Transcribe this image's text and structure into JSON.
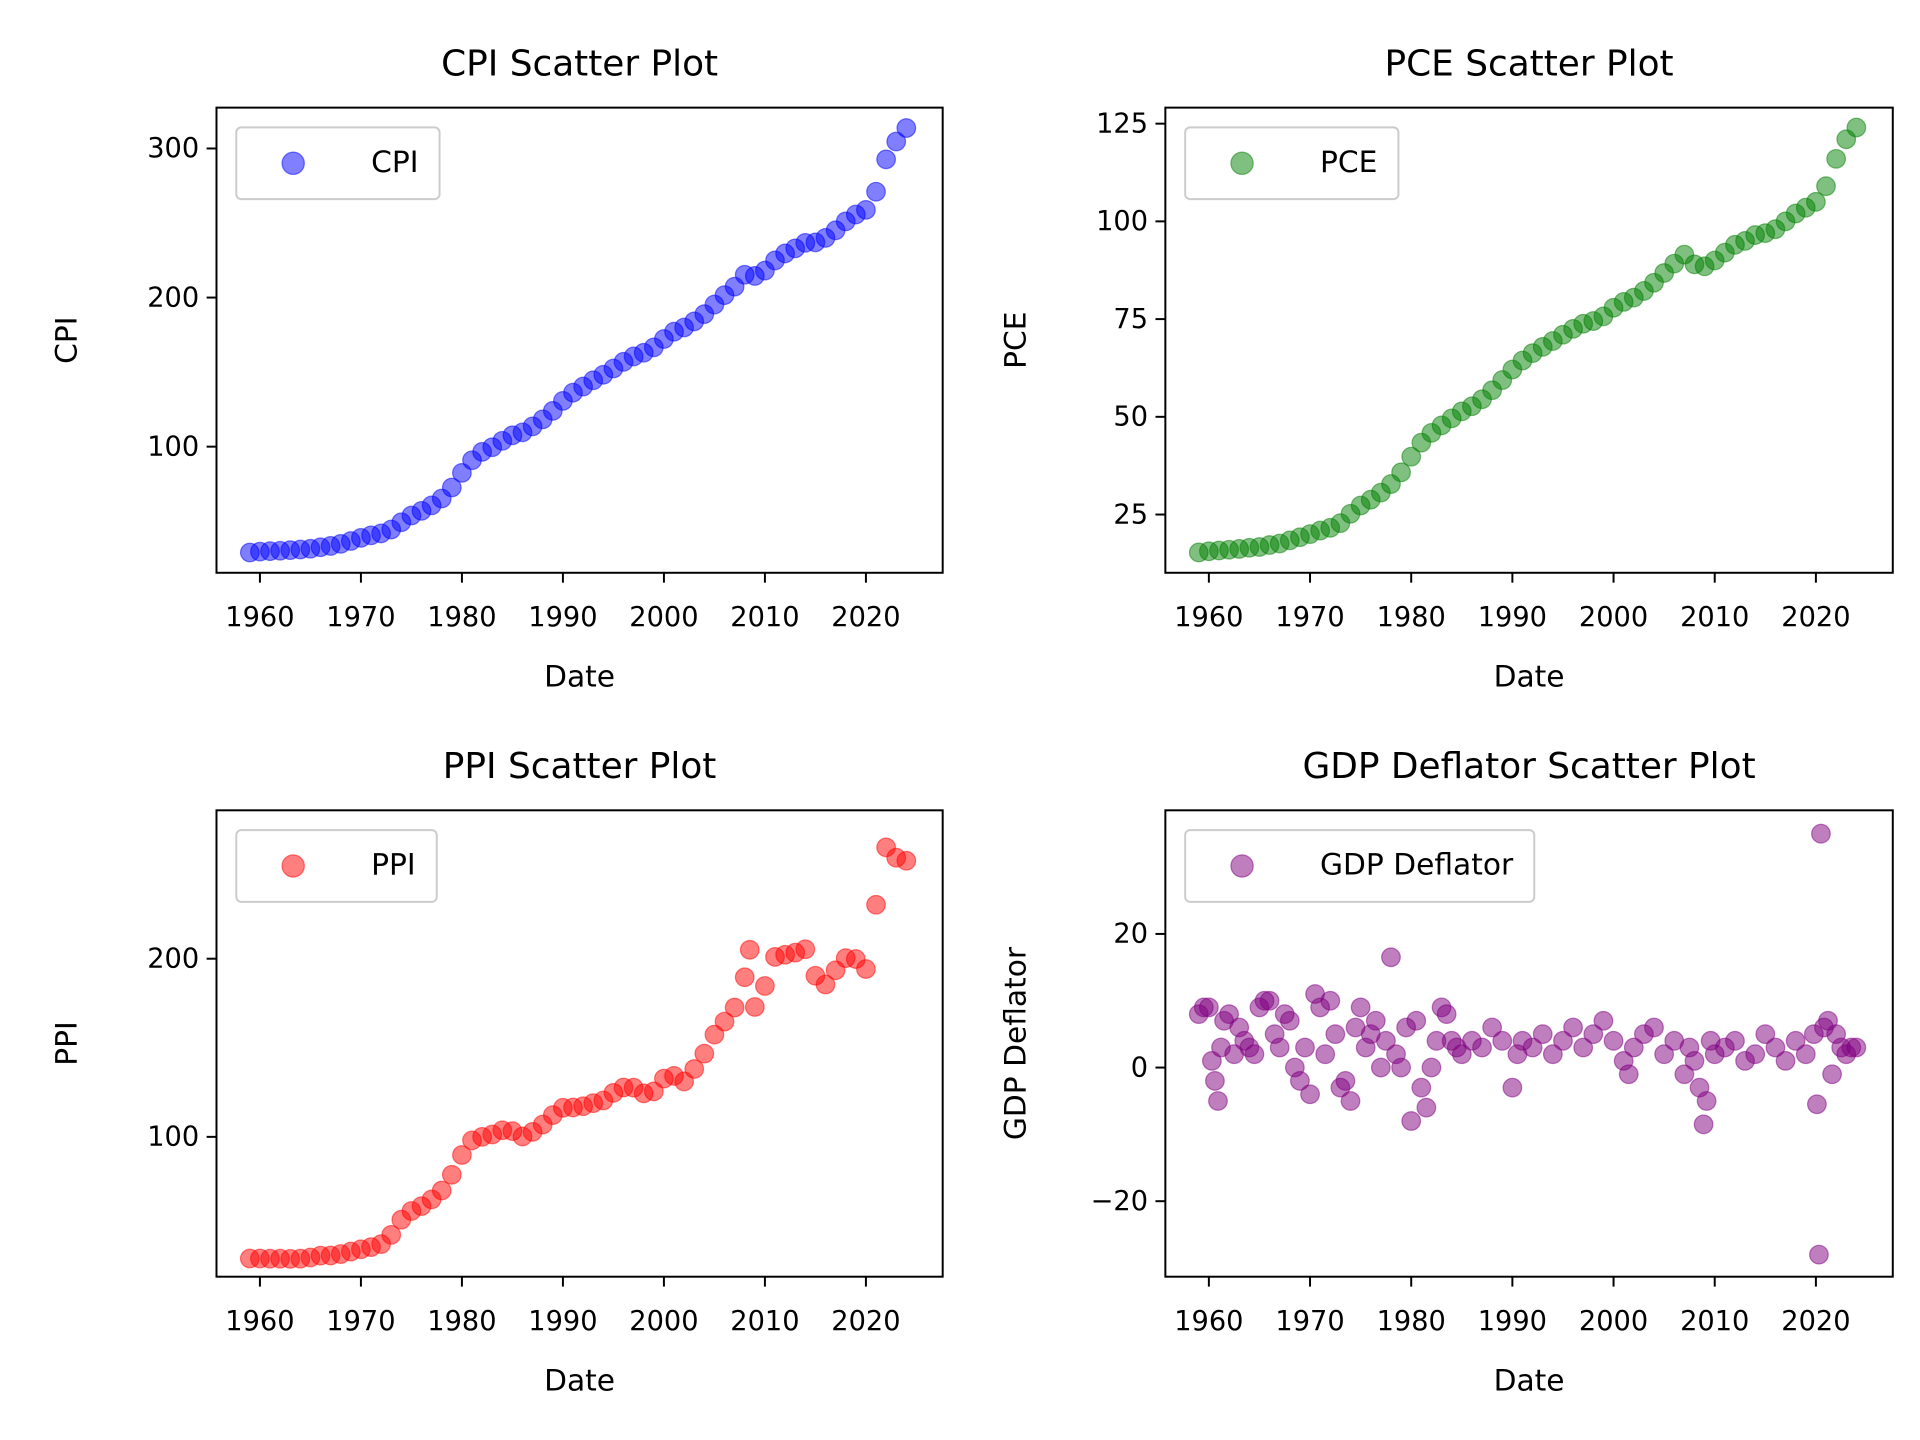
{
  "chart_data": [
    {
      "type": "scatter",
      "title": "CPI Scatter Plot",
      "xlabel": "Date",
      "ylabel": "CPI",
      "legend": "upper left",
      "xlim": [
        1955.7,
        2027.6
      ],
      "ylim": [
        15.4,
        327.4
      ],
      "xticks": [
        1960,
        1970,
        1980,
        1990,
        2000,
        2010,
        2020
      ],
      "yticks": [
        100,
        200,
        300
      ],
      "series": [
        {
          "name": "CPI",
          "color": "#0000ff",
          "x": [
            1959,
            1960,
            1961,
            1962,
            1963,
            1964,
            1965,
            1966,
            1967,
            1968,
            1969,
            1970,
            1971,
            1972,
            1973,
            1974,
            1975,
            1976,
            1977,
            1978,
            1979,
            1980,
            1981,
            1982,
            1983,
            1984,
            1985,
            1986,
            1987,
            1988,
            1989,
            1990,
            1991,
            1992,
            1993,
            1994,
            1995,
            1996,
            1997,
            1998,
            1999,
            2000,
            2001,
            2002,
            2003,
            2004,
            2005,
            2006,
            2007,
            2008,
            2009,
            2010,
            2011,
            2012,
            2013,
            2014,
            2015,
            2016,
            2017,
            2018,
            2019,
            2020,
            2021,
            2022,
            2023,
            2024
          ],
          "values": [
            29.0,
            29.6,
            29.9,
            30.2,
            30.6,
            31.0,
            31.5,
            32.5,
            33.4,
            34.8,
            36.7,
            38.8,
            40.5,
            41.8,
            44.4,
            49.3,
            53.8,
            56.9,
            60.6,
            65.2,
            72.6,
            82.4,
            90.9,
            96.5,
            99.6,
            103.9,
            107.6,
            109.6,
            113.6,
            118.3,
            124.0,
            130.7,
            136.2,
            140.3,
            144.5,
            148.2,
            152.4,
            156.9,
            160.5,
            163.0,
            166.6,
            172.2,
            177.1,
            179.9,
            184.0,
            188.9,
            195.3,
            201.6,
            207.3,
            215.3,
            214.5,
            218.1,
            224.9,
            229.6,
            233.0,
            236.7,
            237.0,
            240.0,
            245.1,
            251.1,
            255.7,
            258.8,
            271.0,
            292.7,
            304.7,
            313.7
          ]
        }
      ]
    },
    {
      "type": "scatter",
      "title": "PCE Scatter Plot",
      "xlabel": "Date",
      "ylabel": "PCE",
      "legend": "upper left",
      "xlim": [
        1955.7,
        2027.6
      ],
      "ylim": [
        10.1,
        129.1
      ],
      "xticks": [
        1960,
        1970,
        1980,
        1990,
        2000,
        2010,
        2020
      ],
      "yticks": [
        25,
        50,
        75,
        100,
        125
      ],
      "series": [
        {
          "name": "PCE",
          "color": "#008000",
          "x": [
            1959,
            1960,
            1961,
            1962,
            1963,
            1964,
            1965,
            1966,
            1967,
            1968,
            1969,
            1970,
            1971,
            1972,
            1973,
            1974,
            1975,
            1976,
            1977,
            1978,
            1979,
            1980,
            1981,
            1982,
            1983,
            1984,
            1985,
            1986,
            1987,
            1988,
            1989,
            1990,
            1991,
            1992,
            1993,
            1994,
            1995,
            1996,
            1997,
            1998,
            1999,
            2000,
            2001,
            2002,
            2003,
            2004,
            2005,
            2006,
            2007,
            2008,
            2009,
            2010,
            2011,
            2012,
            2013,
            2014,
            2015,
            2016,
            2017,
            2018,
            2019,
            2020,
            2021,
            2022,
            2023,
            2024
          ],
          "values": [
            15.3,
            15.6,
            15.8,
            16.0,
            16.2,
            16.5,
            16.7,
            17.2,
            17.6,
            18.4,
            19.2,
            20.0,
            20.9,
            21.6,
            22.8,
            25.2,
            27.3,
            28.8,
            30.6,
            32.8,
            35.8,
            39.8,
            43.4,
            45.9,
            47.8,
            49.6,
            51.4,
            52.7,
            54.5,
            56.8,
            59.4,
            62.1,
            64.4,
            66.3,
            67.9,
            69.4,
            71.0,
            72.5,
            73.8,
            74.5,
            75.7,
            77.9,
            79.4,
            80.5,
            82.2,
            84.3,
            86.8,
            89.2,
            91.5,
            89.0,
            88.5,
            90.0,
            92.0,
            94.0,
            95.0,
            96.5,
            97.0,
            98.0,
            100.0,
            102.0,
            103.5,
            105.0,
            109.0,
            116.0,
            121.0,
            124.0
          ]
        }
      ]
    },
    {
      "type": "scatter",
      "title": "PPI Scatter Plot",
      "xlabel": "Date",
      "ylabel": "PPI",
      "legend": "upper left",
      "xlim": [
        1955.7,
        2027.6
      ],
      "ylim": [
        21.5,
        283.3
      ],
      "xticks": [
        1960,
        1970,
        1980,
        1990,
        2000,
        2010,
        2020
      ],
      "yticks": [
        100,
        200
      ],
      "series": [
        {
          "name": "PPI",
          "color": "#ff0000",
          "x": [
            1959,
            1960,
            1961,
            1962,
            1963,
            1964,
            1965,
            1966,
            1967,
            1968,
            1969,
            1970,
            1971,
            1972,
            1973,
            1974,
            1975,
            1976,
            1977,
            1978,
            1979,
            1980,
            1981,
            1982,
            1983,
            1984,
            1985,
            1986,
            1987,
            1988,
            1989,
            1990,
            1991,
            1992,
            1993,
            1994,
            1995,
            1996,
            1997,
            1998,
            1999,
            2000,
            2001,
            2002,
            2003,
            2004,
            2005,
            2006,
            2007,
            2008,
            2008.5,
            2009,
            2010,
            2011,
            2012,
            2013,
            2014,
            2015,
            2016,
            2017,
            2018,
            2019,
            2020,
            2021,
            2022,
            2023,
            2024
          ],
          "values": [
            31.7,
            31.7,
            31.6,
            31.6,
            31.5,
            31.6,
            32.3,
            33.3,
            33.4,
            34.2,
            35.6,
            36.9,
            38.1,
            39.8,
            45.0,
            53.5,
            58.4,
            61.1,
            64.9,
            69.9,
            78.7,
            89.8,
            98.0,
            100.0,
            101.3,
            103.7,
            103.2,
            100.2,
            102.8,
            106.9,
            112.2,
            116.3,
            116.5,
            117.2,
            118.9,
            120.4,
            124.7,
            127.7,
            127.6,
            124.4,
            125.5,
            132.7,
            134.2,
            131.1,
            138.1,
            146.7,
            157.4,
            164.7,
            172.6,
            189.6,
            205.0,
            172.9,
            184.7,
            201.0,
            202.2,
            203.4,
            205.3,
            190.4,
            185.5,
            193.5,
            200.3,
            199.8,
            194.2,
            230.3,
            262.5,
            256.7,
            255.0
          ]
        }
      ]
    },
    {
      "type": "scatter",
      "title": "GDP Deflator Scatter Plot",
      "xlabel": "Date",
      "ylabel": "GDP Deflator",
      "legend": "upper left",
      "xlim": [
        1955.7,
        2027.6
      ],
      "ylim": [
        -31.3,
        38.5
      ],
      "xticks": [
        1960,
        1970,
        1980,
        1990,
        2000,
        2010,
        2020
      ],
      "yticks": [
        {
          "value": -20,
          "label": "−20"
        },
        0,
        20
      ],
      "series": [
        {
          "name": "GDP Deflator",
          "color": "#800080",
          "x": [
            1959,
            1959.5,
            1960,
            1960.3,
            1960.6,
            1960.9,
            1961.2,
            1961.5,
            1962,
            1962.5,
            1963,
            1963.5,
            1964,
            1964.5,
            1965,
            1965.5,
            1966,
            1966.5,
            1967,
            1967.5,
            1968,
            1968.5,
            1969,
            1969.5,
            1970,
            1970.5,
            1971,
            1971.5,
            1972,
            1972.5,
            1973,
            1973.5,
            1974,
            1974.5,
            1975,
            1975.5,
            1976,
            1976.5,
            1977,
            1977.5,
            1978,
            1978.5,
            1979,
            1979.5,
            1980,
            1980.5,
            1981,
            1981.5,
            1982,
            1982.5,
            1983,
            1983.5,
            1984,
            1984.5,
            1985,
            1986,
            1987,
            1988,
            1989,
            1990,
            1990.5,
            1991,
            1992,
            1993,
            1994,
            1995,
            1996,
            1997,
            1998,
            1999,
            2000,
            2001,
            2001.5,
            2002,
            2003,
            2004,
            2005,
            2006,
            2007,
            2007.5,
            2008,
            2008.5,
            2008.9,
            2009.2,
            2009.6,
            2010,
            2011,
            2012,
            2013,
            2014,
            2015,
            2016,
            2017,
            2018,
            2019,
            2019.8,
            2020.1,
            2020.3,
            2020.5,
            2020.8,
            2021.2,
            2021.6,
            2022,
            2022.5,
            2023,
            2023.5,
            2024
          ],
          "values": [
            8,
            9,
            9,
            1,
            -2,
            -5,
            3,
            7,
            8,
            2,
            6,
            4,
            3,
            2,
            9,
            10,
            10,
            5,
            3,
            8,
            7,
            0,
            -2,
            3,
            -4,
            11,
            9,
            2,
            10,
            5,
            -3,
            -2,
            -5,
            6,
            9,
            3,
            5,
            7,
            0,
            4,
            16.5,
            2,
            0,
            6,
            -8,
            7,
            -3,
            -6,
            0,
            4,
            9,
            8,
            4,
            3,
            2,
            4,
            3,
            6,
            4,
            -3,
            2,
            4,
            3,
            5,
            2,
            4,
            6,
            3,
            5,
            7,
            4,
            1,
            -1,
            3,
            5,
            6,
            2,
            4,
            -1,
            3,
            1,
            -3,
            -8.5,
            -5,
            4,
            2,
            3,
            4,
            1,
            2,
            5,
            3,
            1,
            4,
            2,
            5,
            -5.5,
            -28,
            35,
            6,
            7,
            -1,
            5,
            3,
            2,
            3,
            3
          ]
        }
      ]
    }
  ]
}
